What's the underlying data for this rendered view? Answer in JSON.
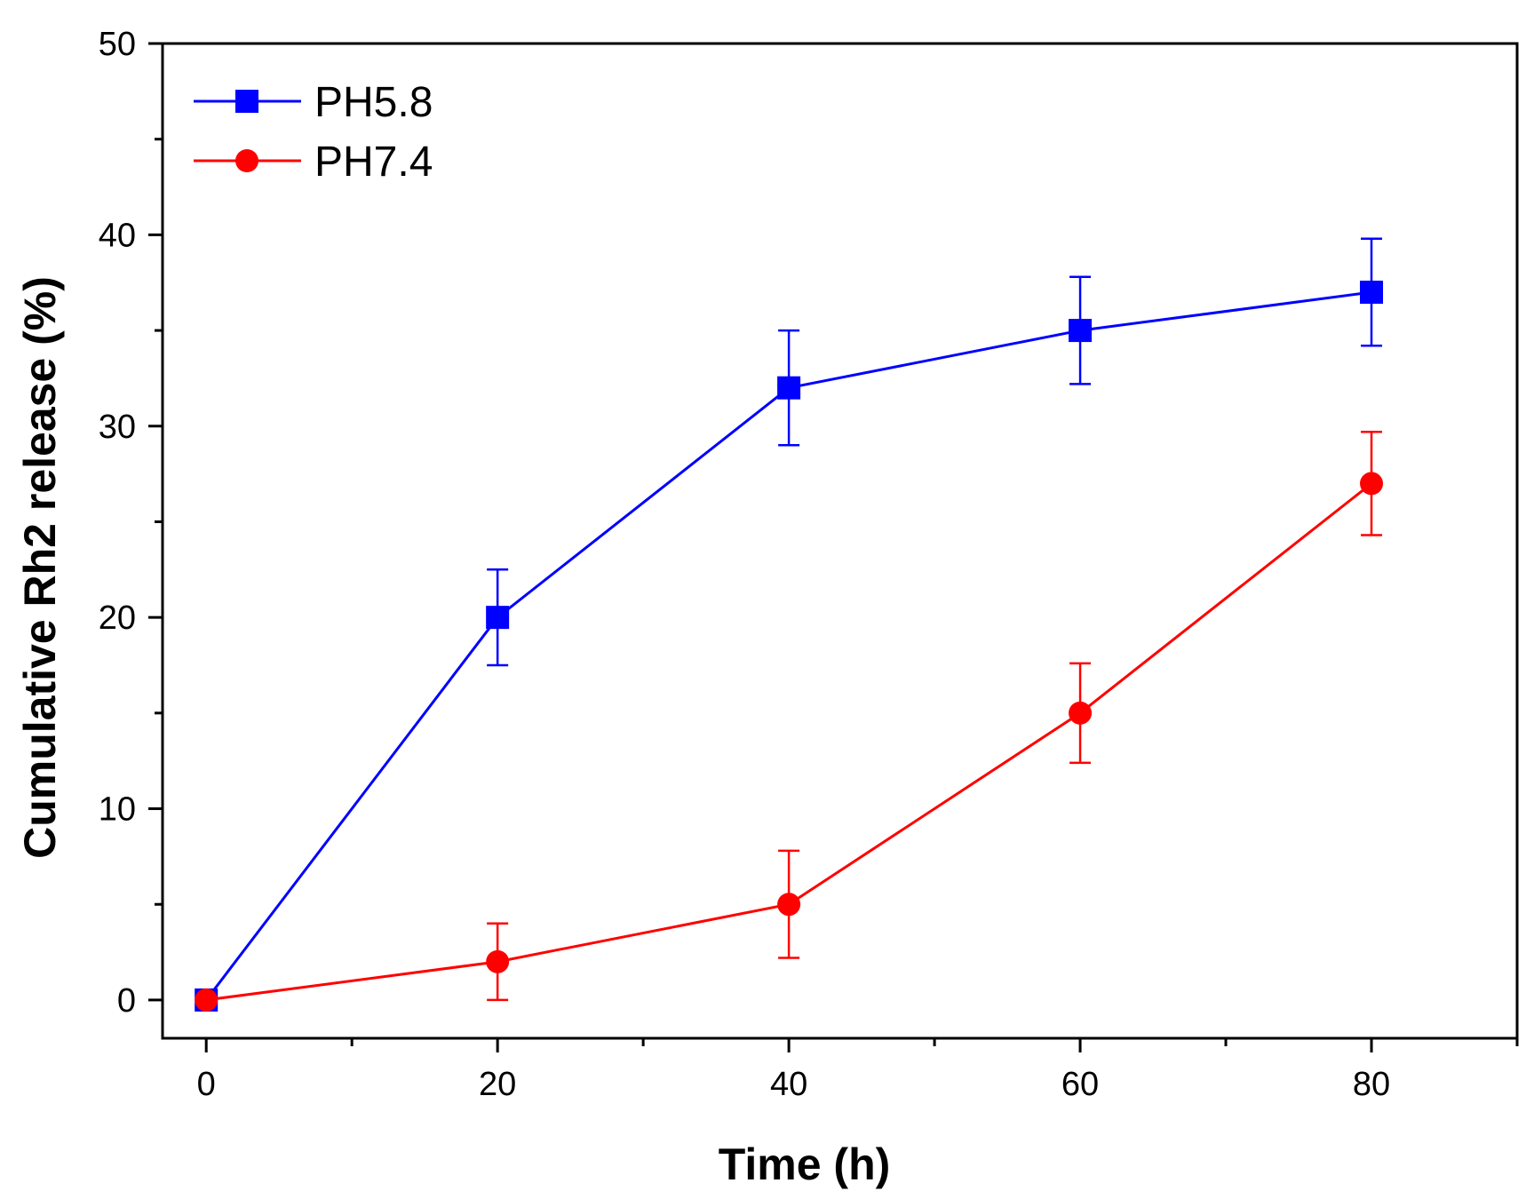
{
  "chart_data": {
    "type": "line",
    "title": "",
    "xlabel": "Time (h)",
    "ylabel": "Cumulative Rh2 release (%)",
    "xlim": [
      -3,
      90
    ],
    "ylim": [
      -2,
      50
    ],
    "x_ticks": [
      0,
      20,
      40,
      60,
      80
    ],
    "x_minor_ticks": [
      10,
      30,
      50,
      70,
      90
    ],
    "y_ticks": [
      0,
      10,
      20,
      30,
      40,
      50
    ],
    "y_minor_ticks": [
      5,
      15,
      25,
      35,
      45
    ],
    "grid": false,
    "legend_position": "top-left",
    "series": [
      {
        "name": "PH5.8",
        "color": "#0000ff",
        "marker": "square",
        "x": [
          0,
          20,
          40,
          60,
          80
        ],
        "values": [
          0,
          20,
          32,
          35,
          37
        ],
        "errors": [
          0,
          2.5,
          3,
          2.8,
          2.8
        ]
      },
      {
        "name": "PH7.4",
        "color": "#ff0000",
        "marker": "circle",
        "x": [
          0,
          20,
          40,
          60,
          80
        ],
        "values": [
          0,
          2,
          5,
          15,
          27
        ],
        "errors": [
          0,
          2,
          2.8,
          2.6,
          2.7
        ]
      }
    ]
  }
}
